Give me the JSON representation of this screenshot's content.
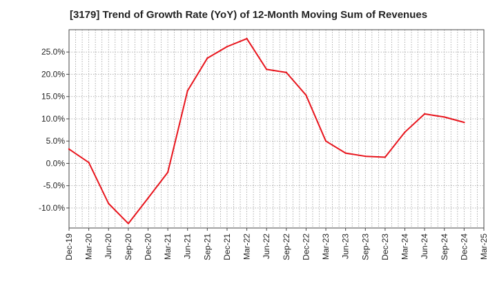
{
  "chart_data": {
    "type": "line",
    "title": "[3179]  Trend of Growth Rate (YoY) of 12-Month Moving Sum of Revenues",
    "xlabel": "",
    "ylabel": "",
    "x_tick_labels": [
      "Dec-19",
      "Mar-20",
      "Jun-20",
      "Sep-20",
      "Dec-20",
      "Mar-21",
      "Jun-21",
      "Sep-21",
      "Dec-21",
      "Mar-22",
      "Jun-22",
      "Sep-22",
      "Dec-22",
      "Mar-23",
      "Jun-23",
      "Sep-23",
      "Dec-23",
      "Mar-24",
      "Jun-24",
      "Sep-24",
      "Dec-24",
      "Mar-25"
    ],
    "y_ticks": [
      25,
      20,
      15,
      10,
      5,
      0,
      -5,
      -10
    ],
    "y_tick_labels": [
      "25.0%",
      "20.0%",
      "15.0%",
      "10.0%",
      "5.0%",
      "0.0%",
      "-5.0%",
      "-10.0%"
    ],
    "ylim": [
      -14.5,
      30
    ],
    "grid": true,
    "series": [
      {
        "color": "#e8141c",
        "x": [
          "Dec-19",
          "Mar-20",
          "Jun-20",
          "Sep-20",
          "Dec-20",
          "Mar-21",
          "Jun-21",
          "Sep-21",
          "Dec-21",
          "Mar-22",
          "Jun-22",
          "Sep-22",
          "Dec-22",
          "Mar-23",
          "Jun-23",
          "Sep-23",
          "Dec-23",
          "Mar-24",
          "Jun-24",
          "Sep-24",
          "Dec-24"
        ],
        "values": [
          3.2,
          0.2,
          -9.0,
          -13.5,
          -7.8,
          -2.0,
          16.3,
          23.6,
          26.2,
          28.0,
          21.1,
          20.4,
          15.3,
          5.0,
          2.3,
          1.6,
          1.4,
          7.0,
          11.1,
          10.4,
          9.2
        ]
      }
    ]
  }
}
